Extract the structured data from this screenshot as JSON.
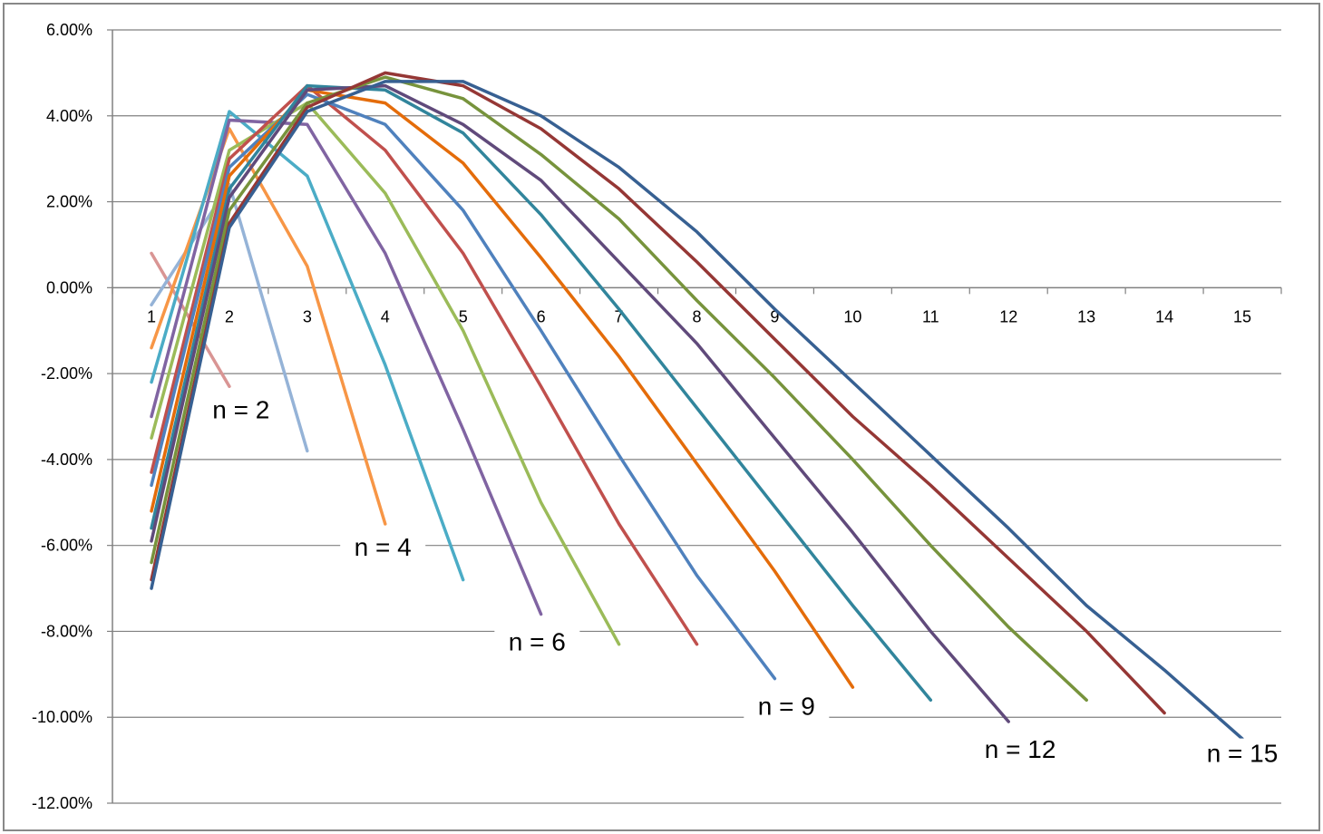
{
  "chart_data": {
    "type": "line",
    "title": "",
    "xlabel": "",
    "ylabel": "",
    "x_ticks": [
      "1",
      "2",
      "3",
      "4",
      "5",
      "6",
      "7",
      "8",
      "9",
      "10",
      "11",
      "12",
      "13",
      "14",
      "15"
    ],
    "y_ticks": [
      "6.00%",
      "4.00%",
      "2.00%",
      "0.00%",
      "-2.00%",
      "-4.00%",
      "-6.00%",
      "-8.00%",
      "-10.00%",
      "-12.00%"
    ],
    "ylim": [
      -12,
      6
    ],
    "xlim": [
      0.5,
      15.5
    ],
    "grid": true,
    "legend": "none",
    "series": [
      {
        "color": "#d99594",
        "x": [
          1,
          2
        ],
        "values": [
          0.8,
          -2.3
        ]
      },
      {
        "color": "#95b3d7",
        "x": [
          1,
          2,
          3
        ],
        "values": [
          -0.4,
          2.4,
          -3.8
        ]
      },
      {
        "color": "#f79646",
        "x": [
          1,
          2,
          3,
          4
        ],
        "values": [
          -1.4,
          3.7,
          0.5,
          -5.5
        ]
      },
      {
        "color": "#4bacc6",
        "x": [
          1,
          2,
          3,
          4,
          5
        ],
        "values": [
          -2.2,
          4.1,
          2.6,
          -1.8,
          -6.8
        ]
      },
      {
        "color": "#8064a2",
        "x": [
          1,
          2,
          3,
          4,
          5,
          6
        ],
        "values": [
          -3.0,
          3.9,
          3.8,
          0.8,
          -3.3,
          -7.6
        ]
      },
      {
        "color": "#9bbb59",
        "x": [
          1,
          2,
          3,
          4,
          5,
          6,
          7
        ],
        "values": [
          -3.5,
          3.2,
          4.3,
          2.2,
          -1.0,
          -5.0,
          -8.3
        ]
      },
      {
        "color": "#c0504d",
        "x": [
          1,
          2,
          3,
          4,
          5,
          6,
          7,
          8
        ],
        "values": [
          -4.3,
          3.0,
          4.7,
          3.2,
          0.8,
          -2.3,
          -5.5,
          -8.3
        ]
      },
      {
        "color": "#4f81bd",
        "x": [
          1,
          2,
          3,
          4,
          5,
          6,
          7,
          8,
          9
        ],
        "values": [
          -4.6,
          2.8,
          4.5,
          3.8,
          1.8,
          -1.0,
          -3.9,
          -6.7,
          -9.1
        ]
      },
      {
        "color": "#e46c0a",
        "x": [
          1,
          2,
          3,
          4,
          5,
          6,
          7,
          8,
          9,
          10
        ],
        "values": [
          -5.2,
          2.6,
          4.6,
          4.3,
          2.9,
          0.7,
          -1.6,
          -4.1,
          -6.6,
          -9.3
        ]
      },
      {
        "color": "#31859c",
        "x": [
          1,
          2,
          3,
          4,
          5,
          6,
          7,
          8,
          9,
          10,
          11
        ],
        "values": [
          -5.6,
          2.3,
          4.7,
          4.6,
          3.6,
          1.7,
          -0.5,
          -2.8,
          -5.1,
          -7.4,
          -9.6
        ]
      },
      {
        "color": "#604a7b",
        "x": [
          1,
          2,
          3,
          4,
          5,
          6,
          7,
          8,
          9,
          10,
          11,
          12
        ],
        "values": [
          -5.9,
          2.1,
          4.6,
          4.7,
          3.8,
          2.5,
          0.6,
          -1.3,
          -3.5,
          -5.7,
          -8.0,
          -10.1
        ]
      },
      {
        "color": "#77933c",
        "x": [
          1,
          2,
          3,
          4,
          5,
          6,
          7,
          8,
          9,
          10,
          11,
          12,
          13
        ],
        "values": [
          -6.4,
          1.8,
          4.3,
          4.9,
          4.4,
          3.1,
          1.6,
          -0.3,
          -2.1,
          -4.0,
          -6.0,
          -7.9,
          -9.6
        ]
      },
      {
        "color": "#953735",
        "x": [
          1,
          2,
          3,
          4,
          5,
          6,
          7,
          8,
          9,
          10,
          11,
          12,
          13,
          14
        ],
        "values": [
          -6.8,
          1.5,
          4.2,
          5.0,
          4.7,
          3.7,
          2.3,
          0.6,
          -1.2,
          -3.0,
          -4.6,
          -6.3,
          -8.0,
          -9.9
        ]
      },
      {
        "color": "#376092",
        "x": [
          1,
          2,
          3,
          4,
          5,
          6,
          7,
          8,
          9,
          10,
          11,
          12,
          13,
          14,
          15
        ],
        "values": [
          -7.0,
          1.4,
          4.1,
          4.8,
          4.8,
          4.0,
          2.8,
          1.3,
          -0.5,
          -2.2,
          -3.9,
          -5.6,
          -7.4,
          -8.9,
          -10.5
        ]
      }
    ],
    "annotations": [
      {
        "text": "n = 2",
        "x": 2.15,
        "y": -3.0
      },
      {
        "text": "n = 4",
        "x": 3.97,
        "y": -6.2
      },
      {
        "text": "n = 6",
        "x": 5.95,
        "y": -8.4
      },
      {
        "text": "n = 9",
        "x": 9.15,
        "y": -9.9
      },
      {
        "text": "n = 12",
        "x": 12.15,
        "y": -10.9
      },
      {
        "text": "n = 15",
        "x": 15.0,
        "y": -11.0
      }
    ]
  }
}
